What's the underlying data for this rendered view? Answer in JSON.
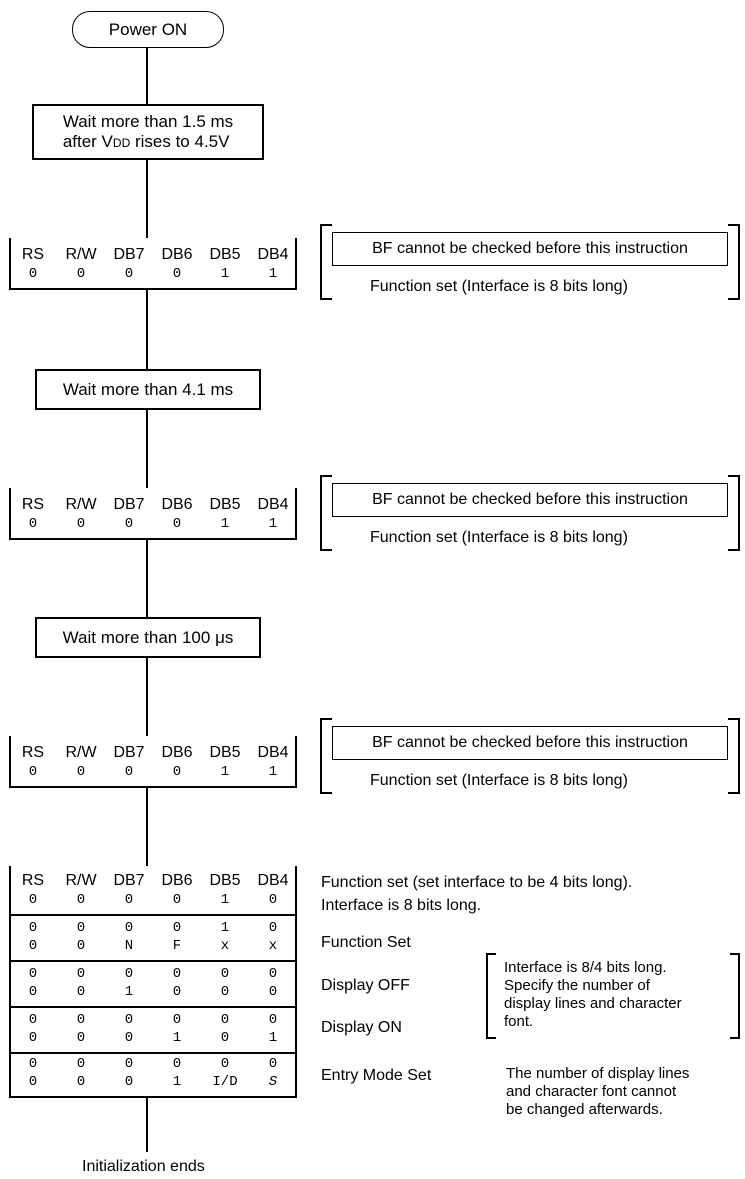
{
  "start_label": "Power ON",
  "wait1_lines": [
    "Wait more than 1.5 ms",
    "after V"
  ],
  "wait1_vdd_sub": "DD",
  "wait1_suffix": " rises to 4.5V",
  "wait2": "Wait more than 4.1 ms",
  "wait3": "Wait more than 100 μs",
  "headers": [
    "RS",
    "R/W",
    "DB7",
    "DB6",
    "DB5",
    "DB4"
  ],
  "bit_values": [
    "0",
    "0",
    "0",
    "0",
    "1",
    "1"
  ],
  "bf_note": "BF cannot be checked before this instruction",
  "function_set_8bit": "Function set (Interface is 8 bits long)",
  "final_header_values": [
    "0",
    "0",
    "0",
    "0",
    "1",
    "0"
  ],
  "final_note_line1": "Function set (set interface to be 4 bits long).",
  "final_note_line2": "Interface is 8 bits long.",
  "rows": [
    {
      "label": "Function Set",
      "r1": [
        "0",
        "0",
        "0",
        "0",
        "1",
        "0"
      ],
      "r2": [
        "0",
        "0",
        "N",
        "F",
        "x",
        "x"
      ]
    },
    {
      "label": "Display OFF",
      "r1": [
        "0",
        "0",
        "0",
        "0",
        "0",
        "0"
      ],
      "r2": [
        "0",
        "0",
        "1",
        "0",
        "0",
        "0"
      ]
    },
    {
      "label": "Display ON",
      "r1": [
        "0",
        "0",
        "0",
        "0",
        "0",
        "0"
      ],
      "r2": [
        "0",
        "0",
        "0",
        "1",
        "0",
        "1"
      ]
    },
    {
      "label": "Entry Mode Set",
      "r1": [
        "0",
        "0",
        "0",
        "0",
        "0",
        "0"
      ],
      "r2": [
        "0",
        "0",
        "0",
        "1",
        "I/D",
        "S"
      ]
    }
  ],
  "bracket_note": [
    "Interface is 8/4 bits long.",
    "Specify the number of",
    "display lines and character",
    "font."
  ],
  "lower_note": [
    "The number of display lines",
    "and character font cannot",
    "be changed afterwards."
  ],
  "end_label": "Initialization ends"
}
